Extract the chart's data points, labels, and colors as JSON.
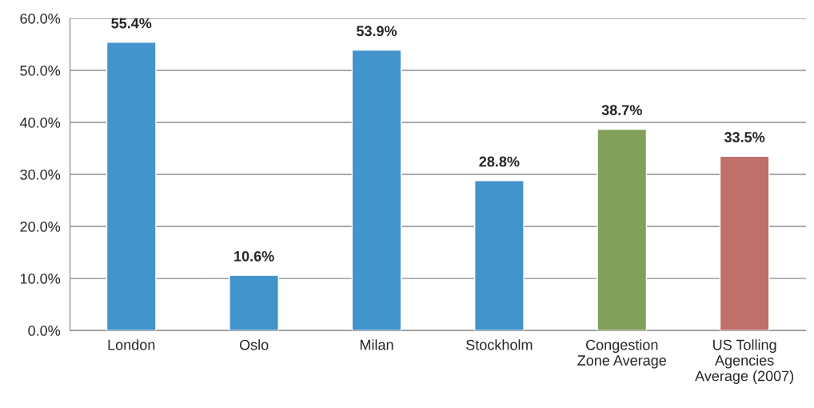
{
  "chart_data": {
    "type": "bar",
    "categories": [
      "London",
      "Oslo",
      "Milan",
      "Stockholm",
      "Congestion\nZone Average",
      "US Tolling\nAgencies\nAverage (2007)"
    ],
    "values": [
      55.4,
      10.6,
      53.9,
      28.8,
      38.7,
      33.5
    ],
    "colors": [
      "#4393cd",
      "#4393cd",
      "#4393cd",
      "#4393cd",
      "#82a05a",
      "#c0706a"
    ],
    "value_labels": [
      "55.4%",
      "10.6%",
      "53.9%",
      "28.8%",
      "38.7%",
      "33.5%"
    ],
    "ylim": [
      0,
      60
    ],
    "yticks": [
      {
        "value": 0,
        "label": "0.0%"
      },
      {
        "value": 10,
        "label": "10.0%"
      },
      {
        "value": 20,
        "label": "20.0%"
      },
      {
        "value": 30,
        "label": "30.0%"
      },
      {
        "value": 40,
        "label": "40.0%"
      },
      {
        "value": 50,
        "label": "50.0%"
      },
      {
        "value": 60,
        "label": "60.0%"
      }
    ],
    "grid": "y",
    "legend": false
  }
}
